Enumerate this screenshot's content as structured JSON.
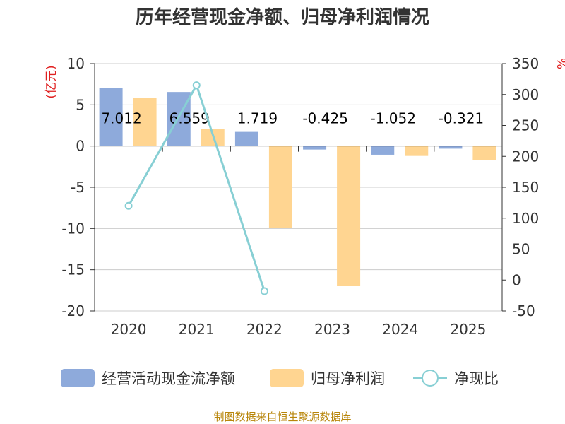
{
  "chart_data": {
    "type": "bar",
    "title": "历年经营现金净额、归母净利润情况",
    "categories": [
      "2020",
      "2021",
      "2022",
      "2023",
      "2024",
      "2025"
    ],
    "y_left": {
      "unit": "(亿元)",
      "min": -20,
      "max": 10,
      "ticks": [
        10,
        5,
        0,
        -5,
        -10,
        -15,
        -20
      ]
    },
    "y_right": {
      "unit": "%",
      "min": -50,
      "max": 350,
      "ticks": [
        350,
        300,
        250,
        200,
        150,
        100,
        50,
        0,
        -50
      ]
    },
    "series": [
      {
        "name": "经营活动现金流净额",
        "kind": "bar",
        "axis": "left",
        "color": "#8eaadb",
        "values": [
          7.012,
          6.559,
          1.719,
          -0.425,
          -1.052,
          -0.321
        ],
        "labels": [
          "7.012",
          "6.559",
          "1.719",
          "-0.425",
          "-1.052",
          "-0.321"
        ]
      },
      {
        "name": "归母净利润",
        "kind": "bar",
        "axis": "left",
        "color": "#ffd591",
        "values": [
          5.8,
          2.1,
          -9.9,
          -17.0,
          -1.2,
          -1.7
        ]
      },
      {
        "name": "净现比",
        "kind": "line",
        "axis": "right",
        "color": "#87cfd4",
        "values": [
          120,
          315,
          -18,
          null,
          null,
          null
        ]
      }
    ],
    "grid": true,
    "legend_position": "bottom"
  },
  "source": "制图数据来自恒生聚源数据库"
}
